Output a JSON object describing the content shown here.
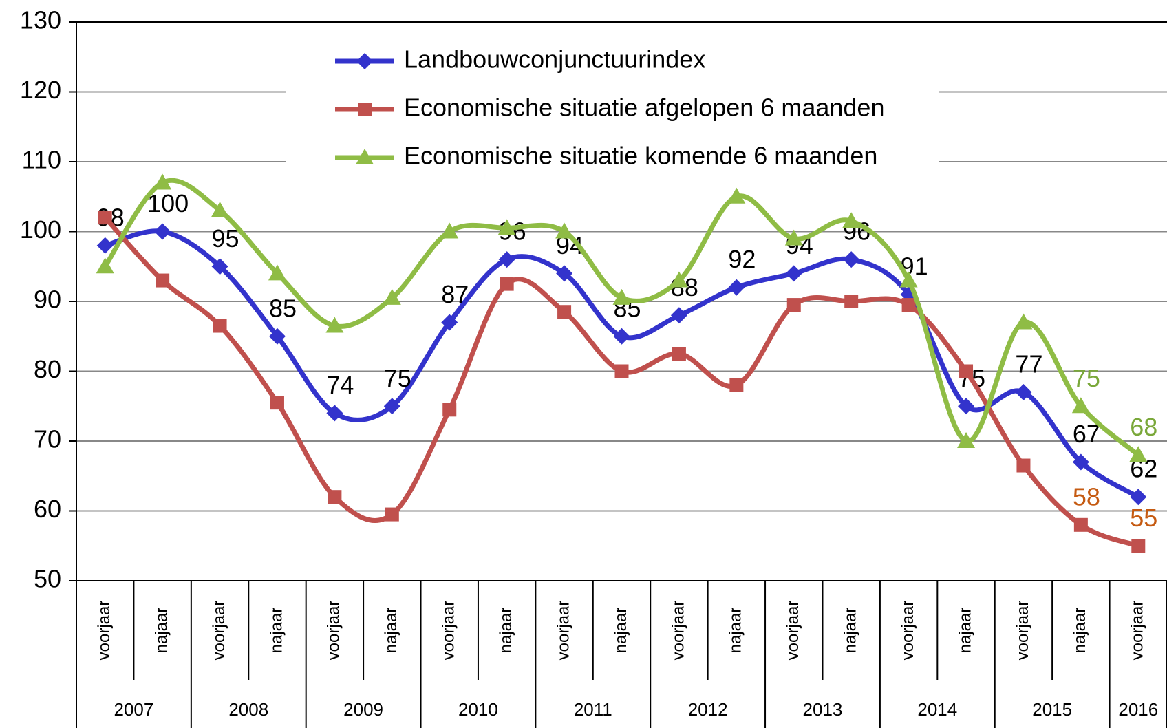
{
  "chart_data": {
    "type": "line",
    "categories": [
      "voorjaar",
      "najaar",
      "voorjaar",
      "najaar",
      "voorjaar",
      "najaar",
      "voorjaar",
      "najaar",
      "voorjaar",
      "najaar",
      "voorjaar",
      "najaar",
      "voorjaar",
      "najaar",
      "voorjaar",
      "najaar",
      "voorjaar",
      "najaar",
      "voorjaar"
    ],
    "years": [
      "2007",
      "2008",
      "2009",
      "2010",
      "2011",
      "2012",
      "2013",
      "2014",
      "2015",
      "2016"
    ],
    "ylim": [
      50,
      130
    ],
    "yticks": [
      50,
      60,
      70,
      80,
      90,
      100,
      110,
      120,
      130
    ],
    "grid": true,
    "series": [
      {
        "name": "Landbouwconjunctuurindex",
        "color": "#3333cc",
        "marker": "diamond",
        "label_color": "#000000",
        "values": [
          98,
          100,
          95,
          85,
          74,
          75,
          87,
          96,
          94,
          85,
          88,
          92,
          94,
          96,
          91,
          75,
          77,
          67,
          62
        ],
        "value_labels": [
          "98",
          "100",
          "95",
          "85",
          "74",
          "75",
          "87",
          "96",
          "94",
          "85",
          "88",
          "92",
          "94",
          "96",
          "91",
          "75",
          "77",
          "67",
          "62"
        ]
      },
      {
        "name": "Economische situatie afgelopen 6 maanden",
        "color": "#c0504d",
        "marker": "square",
        "label_color": "#c55a11",
        "values": [
          102,
          93,
          86.5,
          75.5,
          62,
          59.5,
          74.5,
          92.5,
          88.5,
          80,
          82.5,
          78,
          89.5,
          90,
          89.5,
          80,
          66.5,
          58,
          55
        ],
        "value_labels": [
          null,
          null,
          null,
          null,
          null,
          null,
          null,
          null,
          null,
          null,
          null,
          null,
          null,
          null,
          null,
          null,
          null,
          "58",
          "55"
        ]
      },
      {
        "name": "Economische situatie komende 6 maanden",
        "color": "#8fbc45",
        "marker": "triangle",
        "label_color": "#7aa83a",
        "values": [
          95,
          107,
          103,
          94,
          86.5,
          90.5,
          100,
          100.5,
          100,
          90.5,
          93,
          105,
          99,
          101.5,
          93,
          70,
          87,
          75,
          68
        ],
        "value_labels": [
          null,
          null,
          null,
          null,
          null,
          null,
          null,
          null,
          null,
          null,
          null,
          null,
          null,
          null,
          null,
          null,
          null,
          "75",
          "68"
        ]
      }
    ]
  }
}
